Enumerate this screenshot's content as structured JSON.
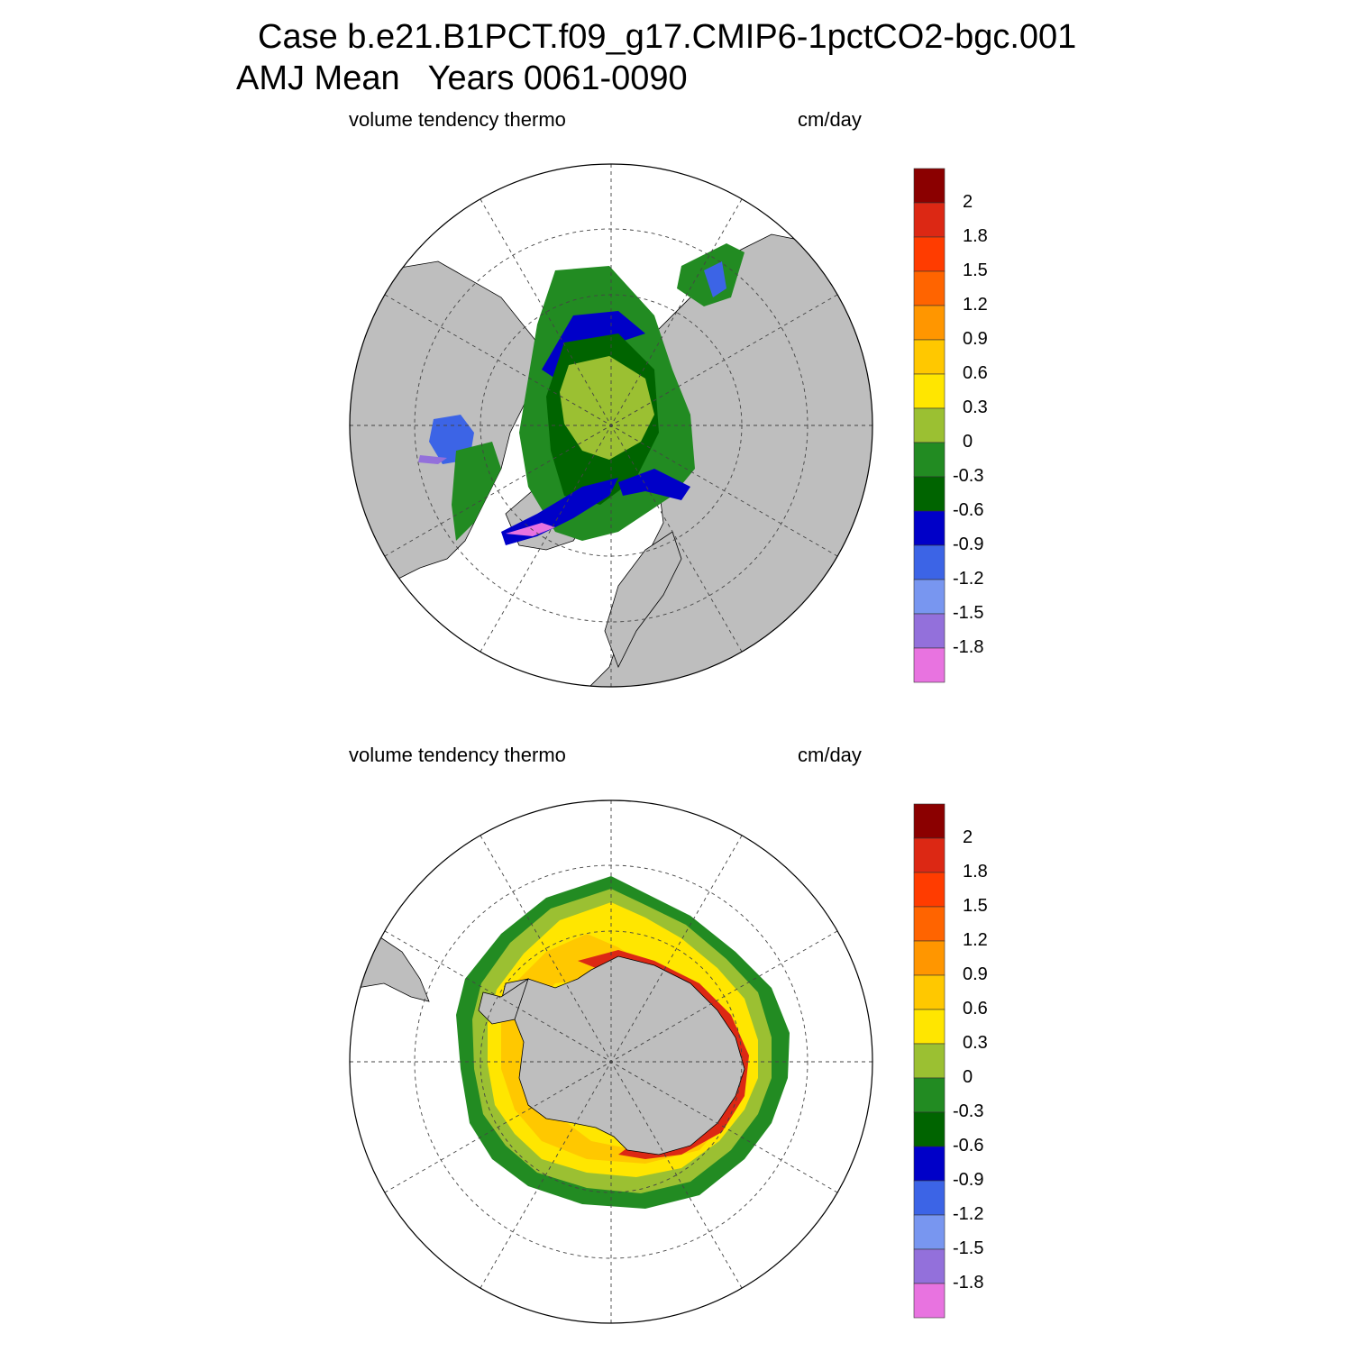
{
  "header": {
    "title_line1": "Case b.e21.B1PCT.f09_g17.CMIP6-1pctCO2-bgc.001",
    "title_line2": "AMJ Mean   Years 0061-0090"
  },
  "panels": [
    {
      "hemisphere": "north",
      "variable": "volume tendency thermo",
      "units": "cm/day"
    },
    {
      "hemisphere": "south",
      "variable": "volume tendency thermo",
      "units": "cm/day"
    }
  ],
  "colorbar": {
    "labels": [
      "2",
      "1.8",
      "1.5",
      "1.2",
      "0.9",
      "0.6",
      "0.3",
      "0",
      "-0.3",
      "-0.6",
      "-0.9",
      "-1.2",
      "-1.5",
      "-1.8"
    ],
    "colors": [
      "#8b0000",
      "#dc2814",
      "#ff3c00",
      "#ff6400",
      "#ff9600",
      "#ffc800",
      "#ffe600",
      "#9bc032",
      "#228b22",
      "#006400",
      "#0000c8",
      "#3c64e6",
      "#7896f0",
      "#9370db",
      "#e873e0"
    ]
  },
  "map_colors": {
    "land": "#bebebe",
    "ocean_no_data": "#ffffff",
    "coast": "#000000"
  }
}
